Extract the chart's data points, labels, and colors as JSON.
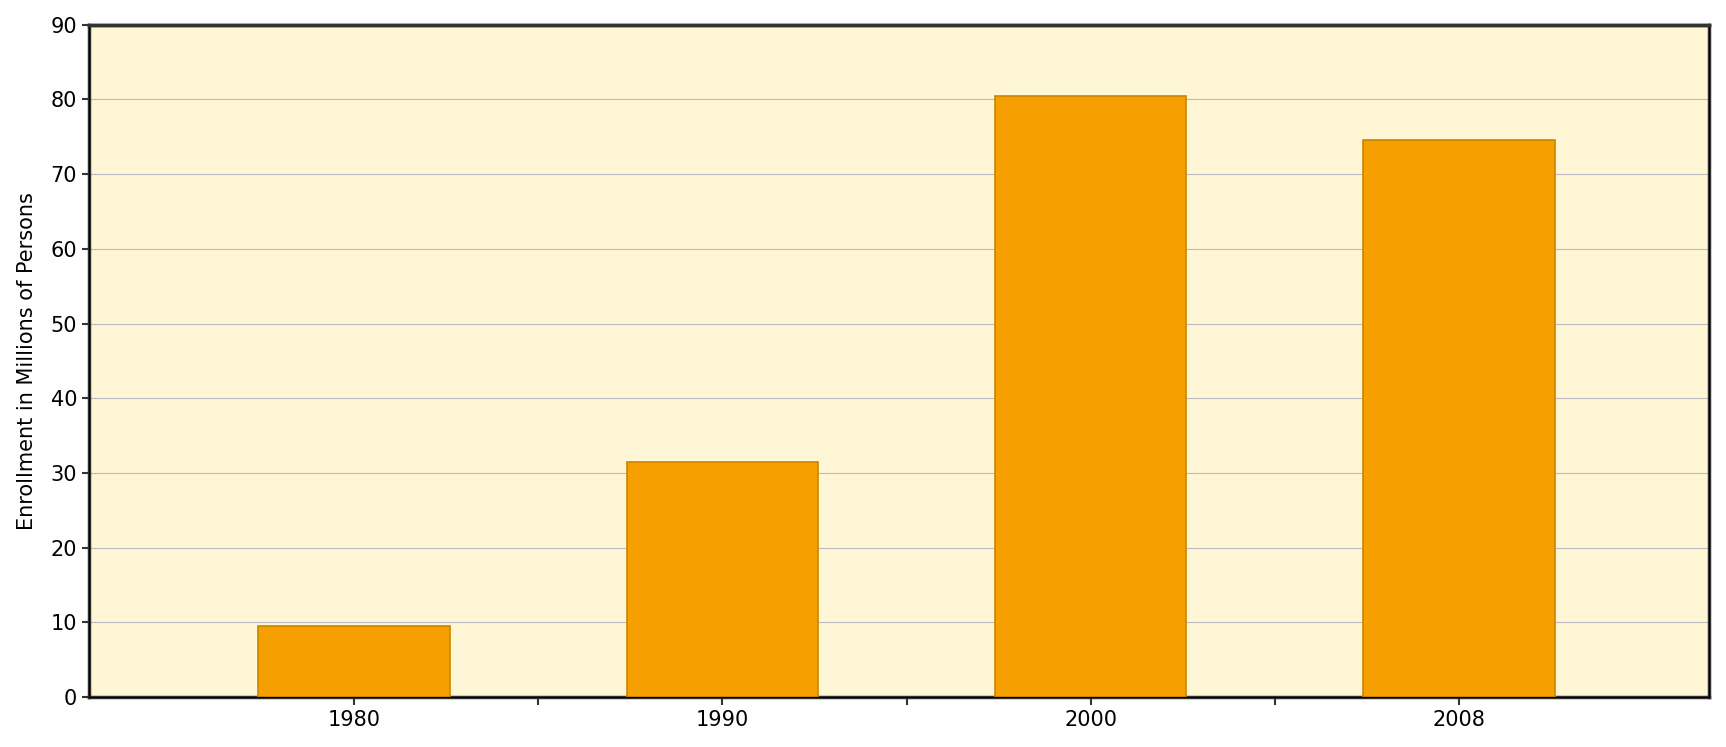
{
  "categories": [
    "1980",
    "1990",
    "2000",
    "2008"
  ],
  "values": [
    9.5,
    31.5,
    80.5,
    74.5
  ],
  "bar_color": "#F5A000",
  "bar_edge_color": "#CC8500",
  "ylabel": "Enrollment in Millions of Persons",
  "ylim": [
    0,
    90
  ],
  "yticks": [
    0,
    10,
    20,
    30,
    40,
    50,
    60,
    70,
    80,
    90
  ],
  "background_color": "#FFFFFF",
  "plot_bg_color": "#FFF6D5",
  "grid_color": "#BBBBBB",
  "bar_width": 0.13,
  "tick_label_fontsize": 15,
  "ylabel_fontsize": 15,
  "bar_positions": [
    0.18,
    0.43,
    0.68,
    0.93
  ],
  "xlim": [
    0.0,
    1.1
  ],
  "xtick_positions": [
    0.18,
    0.43,
    0.68,
    0.93
  ],
  "border_color": "#333333",
  "border_linewidth": 2.5
}
